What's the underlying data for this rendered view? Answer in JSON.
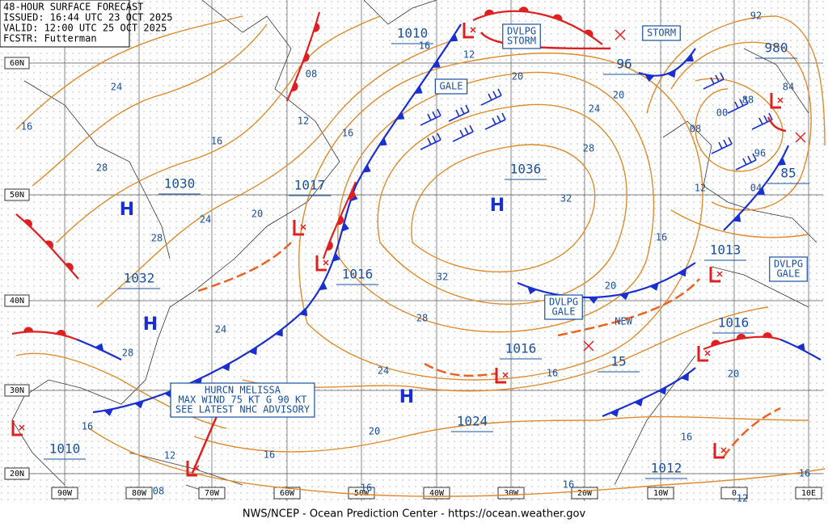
{
  "header": {
    "lines": [
      "48-HOUR SURFACE FORECAST",
      "ISSUED: 16:44 UTC 23 OCT 2025",
      "VALID: 12:00 UTC 25 OCT 2025",
      "FCSTR: Futterman"
    ]
  },
  "latitude_labels": [
    "60N",
    "50N",
    "40N",
    "30N",
    "20N"
  ],
  "longitude_labels": [
    "90W",
    "80W",
    "70W",
    "60W",
    "50W",
    "40W",
    "30W",
    "20W",
    "10W",
    "0",
    "10E"
  ],
  "pressure_centers": [
    "1010",
    "96",
    "980",
    "85",
    "1036",
    "1030",
    "1017",
    "1032",
    "1016",
    "1013",
    "1016",
    "1016",
    "15",
    "1024",
    "1010",
    "1012"
  ],
  "highs": [
    "H",
    "H",
    "H",
    "H"
  ],
  "isobar_labels": [
    "16",
    "12",
    "08",
    "12",
    "16",
    "16",
    "24",
    "16",
    "28",
    "24",
    "20",
    "28",
    "24",
    "28",
    "20",
    "24",
    "20",
    "28",
    "32",
    "32",
    "28",
    "24",
    "16",
    "20",
    "16",
    "12",
    "16",
    "16",
    "16",
    "08",
    "20",
    "16",
    "12",
    "04",
    "08",
    "00",
    "88",
    "96",
    "84",
    "92",
    "20",
    "16",
    "16",
    "12"
  ],
  "advisories": [
    [
      "DVLPG",
      "STORM"
    ],
    [
      "GALE"
    ],
    [
      "STORM"
    ],
    [
      "DVLPG",
      "GALE"
    ],
    [
      "DVLPG",
      "GALE"
    ],
    [
      "HURCN MELISSA",
      "MAX WIND 75 KT G 90 KT",
      "SEE LATEST NHC ADVISORY"
    ]
  ],
  "note": "NEW",
  "footer": "NWS/NCEP - Ocean Prediction Center - https://ocean.weather.gov"
}
